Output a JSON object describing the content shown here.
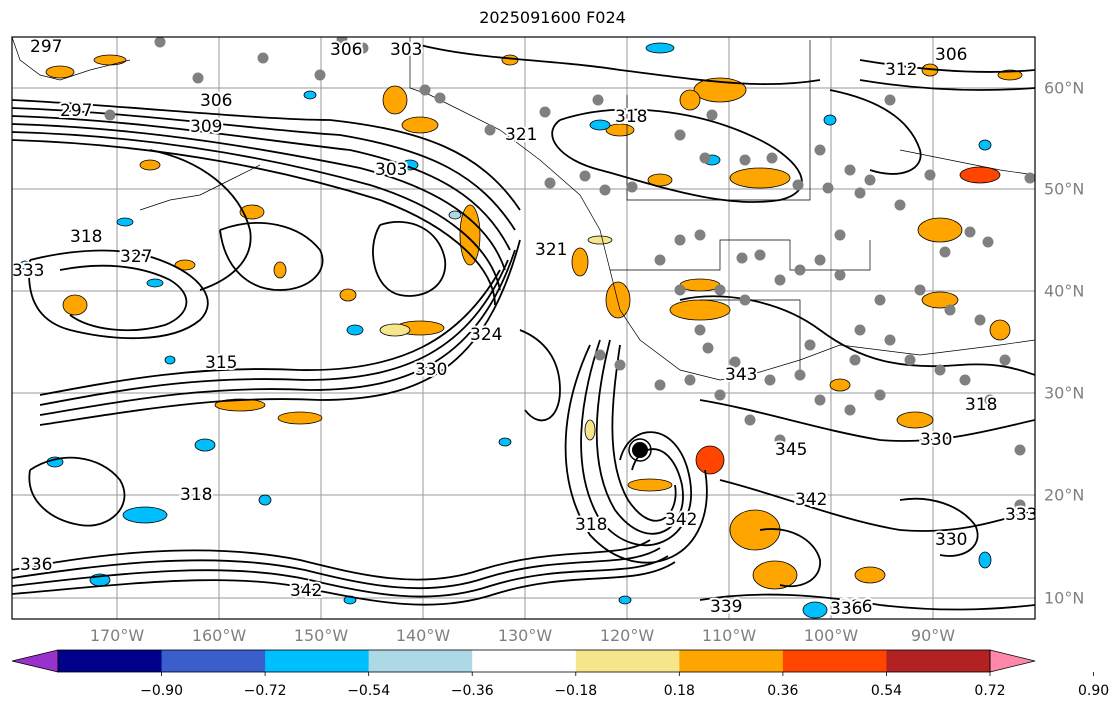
{
  "title": "2025091600 F024",
  "map": {
    "lon_labels": [
      "170°W",
      "160°W",
      "150°W",
      "140°W",
      "130°W",
      "120°W",
      "110°W",
      "100°W",
      "90°W"
    ],
    "lat_labels": [
      "60°N",
      "50°N",
      "40°N",
      "30°N",
      "20°N",
      "10°N"
    ],
    "contour_labels": [
      {
        "text": "297"
      },
      {
        "text": "297"
      },
      {
        "text": "306"
      },
      {
        "text": "306"
      },
      {
        "text": "309"
      },
      {
        "text": "303"
      },
      {
        "text": "303"
      },
      {
        "text": "318"
      },
      {
        "text": "327"
      },
      {
        "text": "333"
      },
      {
        "text": "315"
      },
      {
        "text": "330"
      },
      {
        "text": "324"
      },
      {
        "text": "321"
      },
      {
        "text": "321"
      },
      {
        "text": "318"
      },
      {
        "text": "312"
      },
      {
        "text": "306"
      },
      {
        "text": "343"
      },
      {
        "text": "345"
      },
      {
        "text": "342"
      },
      {
        "text": "318"
      },
      {
        "text": "342"
      },
      {
        "text": "330"
      },
      {
        "text": "336"
      },
      {
        "text": "339"
      },
      {
        "text": "336"
      },
      {
        "text": "333"
      },
      {
        "text": "318"
      },
      {
        "text": "318"
      },
      {
        "text": "342"
      },
      {
        "text": "336"
      },
      {
        "text": "330"
      }
    ]
  },
  "colorbar": {
    "colors": [
      "#9932cc",
      "#00008b",
      "#3a5fcd",
      "#00bfff",
      "#add8e6",
      "#ffffff",
      "#f6e68b",
      "#ffa500",
      "#ff4500",
      "#b22222",
      "#ff88aa"
    ],
    "ticks": [
      "−0.90",
      "−0.72",
      "−0.54",
      "−0.36",
      "−0.18",
      "0.18",
      "0.36",
      "0.54",
      "0.72",
      "0.90"
    ]
  },
  "shading_colors": {
    "pos": "#ffa500",
    "pos_strong": "#ff4500",
    "pos_weak": "#f6e68b",
    "neg": "#00bfff",
    "neg_weak": "#add8e6",
    "station": "#808080"
  }
}
